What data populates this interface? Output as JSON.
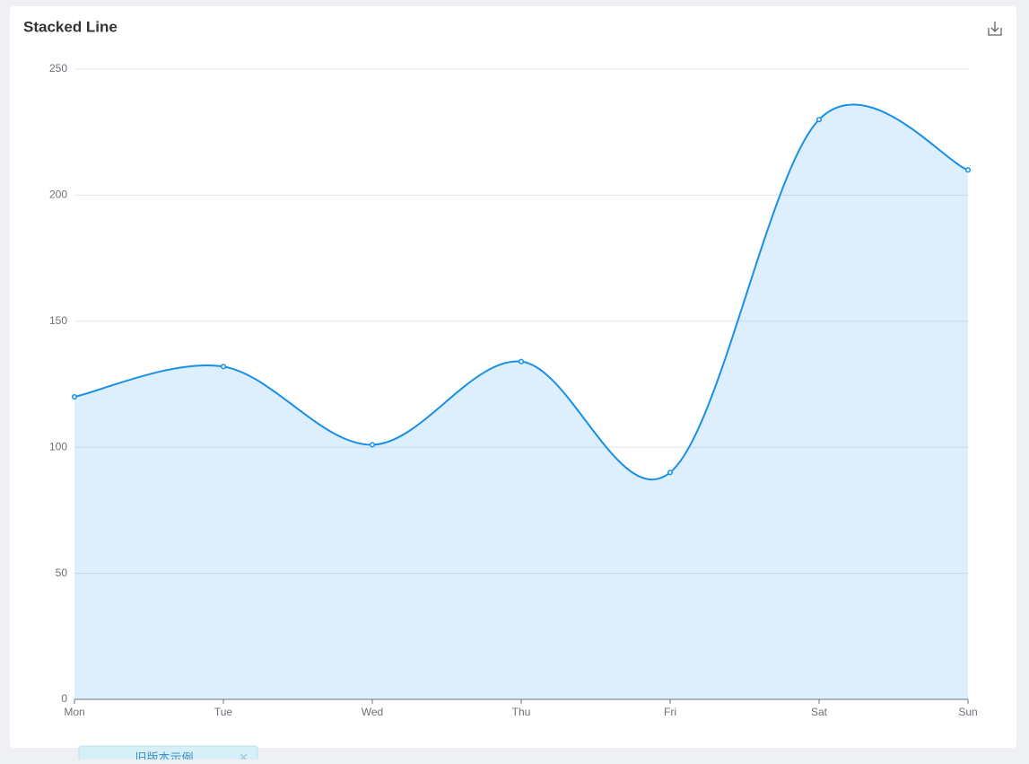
{
  "chart_data": {
    "type": "line",
    "title": "Stacked Line",
    "categories": [
      "Mon",
      "Tue",
      "Wed",
      "Thu",
      "Fri",
      "Sat",
      "Sun"
    ],
    "values": [
      120,
      132,
      101,
      134,
      90,
      230,
      210
    ],
    "color": "#1890e8",
    "area": true,
    "smooth": true,
    "ylim": [
      0,
      250
    ],
    "yticks": [
      0,
      50,
      100,
      150,
      200,
      250
    ],
    "grid": true
  },
  "tab": {
    "label": "旧版本示例"
  }
}
